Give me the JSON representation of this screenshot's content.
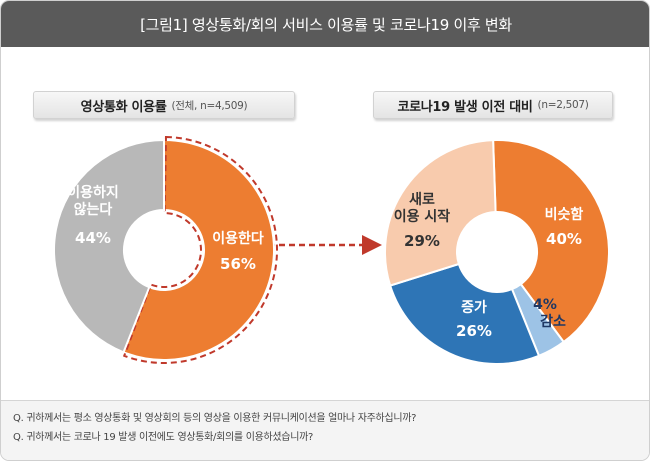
{
  "title": "[그림1] 영상통화/회의 서비스 이용률 및 코로나19 이후 변화",
  "chart_data": [
    {
      "type": "pie",
      "title": "영상통화 이용률",
      "subtitle": "(전체, n=4,509)",
      "slices": [
        {
          "label": "이용한다",
          "value": 56,
          "value_label": "56%",
          "color": "#ed7d31"
        },
        {
          "label": "이용하지\n않는다",
          "value": 44,
          "value_label": "44%",
          "color": "#b8b8b8"
        }
      ]
    },
    {
      "type": "pie",
      "title": "코로나19 발생 이전 대비",
      "subtitle": "(n=2,507)",
      "slices": [
        {
          "label": "비슷함",
          "value": 40,
          "value_label": "40%",
          "color": "#ed7d31"
        },
        {
          "label": "감소",
          "value": 4,
          "value_label": "4%",
          "color": "#9dc3e6"
        },
        {
          "label": "증가",
          "value": 26,
          "value_label": "26%",
          "color": "#2e75b6"
        },
        {
          "label": "새로\n이용 시작",
          "value": 29,
          "value_label": "29%",
          "color": "#f8cbad"
        }
      ]
    }
  ],
  "notes": [
    "Q. 귀하께서는 평소 영상통화 및 영상회의 등의 영상을 이용한 커뮤니케이션을 얼마나 자주하십니까?",
    "Q. 귀하께서는 코로나 19 발생 이전에도 영상통화/회의를 이용하셨습니까?"
  ]
}
